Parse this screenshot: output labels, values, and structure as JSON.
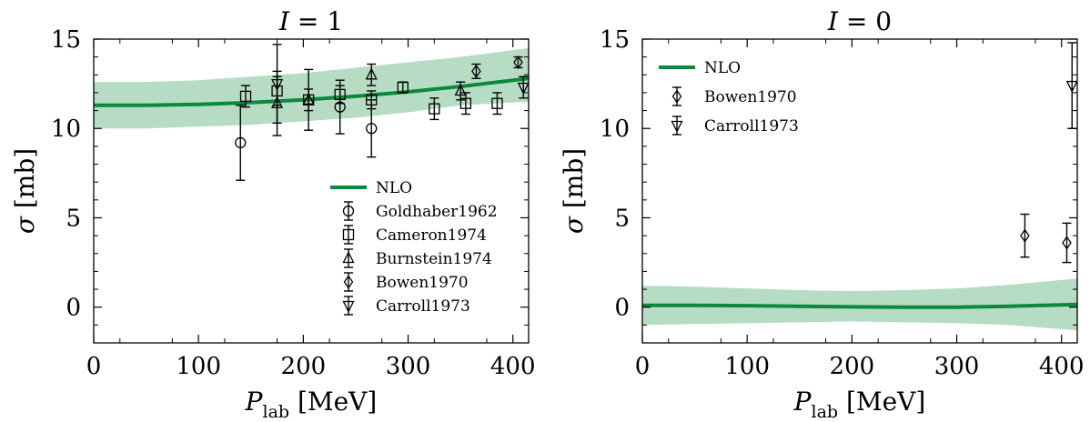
{
  "chart_data": [
    {
      "type": "line",
      "title": "I = 1",
      "xlabel": "P_lab [MeV]",
      "ylabel": "σ [mb]",
      "xlim": [
        0,
        415
      ],
      "ylim": [
        -2,
        15
      ],
      "xticks": [
        0,
        100,
        200,
        300,
        400
      ],
      "yticks": [
        0,
        5,
        10,
        15
      ],
      "legend_position": "bottom-right",
      "band": {
        "name": "NLO",
        "color": "#b6ddc3",
        "x": [
          0,
          50,
          100,
          150,
          200,
          250,
          300,
          350,
          415
        ],
        "lower": [
          10.0,
          10.0,
          10.1,
          10.2,
          10.4,
          10.6,
          10.9,
          11.3,
          11.5
        ],
        "upper": [
          12.6,
          12.6,
          12.7,
          12.9,
          13.1,
          13.4,
          13.7,
          14.0,
          14.5
        ]
      },
      "series": [
        {
          "name": "NLO",
          "kind": "line",
          "color": "#0a8a3a",
          "x": [
            0,
            50,
            100,
            150,
            200,
            250,
            300,
            350,
            415
          ],
          "y": [
            11.3,
            11.3,
            11.35,
            11.45,
            11.6,
            11.8,
            12.05,
            12.35,
            12.8
          ]
        },
        {
          "name": "Goldhaber1962",
          "kind": "errorbar",
          "marker": "circle",
          "points": [
            {
              "x": 140,
              "y": 9.2,
              "err": 2.1
            },
            {
              "x": 235,
              "y": 11.2,
              "err": 1.5
            },
            {
              "x": 265,
              "y": 10.0,
              "err": 1.6
            }
          ]
        },
        {
          "name": "Cameron1974",
          "kind": "errorbar",
          "marker": "square",
          "points": [
            {
              "x": 145,
              "y": 11.8,
              "err": 0.6
            },
            {
              "x": 175,
              "y": 12.1,
              "err": 0.8
            },
            {
              "x": 205,
              "y": 11.6,
              "err": 0.6
            },
            {
              "x": 235,
              "y": 11.9,
              "err": 0.5
            },
            {
              "x": 265,
              "y": 11.6,
              "err": 0.5
            },
            {
              "x": 295,
              "y": 12.3,
              "err": 0.3
            },
            {
              "x": 325,
              "y": 11.1,
              "err": 0.6
            },
            {
              "x": 355,
              "y": 11.4,
              "err": 0.6
            },
            {
              "x": 385,
              "y": 11.4,
              "err": 0.6
            }
          ]
        },
        {
          "name": "Burnstein1974",
          "kind": "errorbar",
          "marker": "triangle-up",
          "points": [
            {
              "x": 175,
              "y": 11.4,
              "err": 1.8
            },
            {
              "x": 205,
              "y": 11.6,
              "err": 1.7
            },
            {
              "x": 265,
              "y": 13.0,
              "err": 0.6
            },
            {
              "x": 350,
              "y": 12.1,
              "err": 0.5
            }
          ]
        },
        {
          "name": "Bowen1970",
          "kind": "errorbar",
          "marker": "diamond",
          "points": [
            {
              "x": 365,
              "y": 13.2,
              "err": 0.4
            },
            {
              "x": 405,
              "y": 13.7,
              "err": 0.3
            }
          ]
        },
        {
          "name": "Carroll1973",
          "kind": "errorbar",
          "marker": "triangle-down",
          "points": [
            {
              "x": 175,
              "y": 12.5,
              "err": 2.2
            },
            {
              "x": 410,
              "y": 12.3,
              "err": 0.6
            }
          ]
        }
      ]
    },
    {
      "type": "line",
      "title": "I = 0",
      "xlabel": "P_lab [MeV]",
      "ylabel": "σ [mb]",
      "xlim": [
        0,
        415
      ],
      "ylim": [
        -2,
        15
      ],
      "xticks": [
        0,
        100,
        200,
        300,
        400
      ],
      "yticks": [
        0,
        5,
        10,
        15
      ],
      "legend_position": "top-left",
      "band": {
        "name": "NLO",
        "color": "#b6ddc3",
        "x": [
          0,
          50,
          100,
          150,
          200,
          250,
          300,
          350,
          415
        ],
        "lower": [
          -1.0,
          -0.95,
          -0.9,
          -0.85,
          -0.8,
          -0.85,
          -0.9,
          -1.0,
          -1.3
        ],
        "upper": [
          1.2,
          1.15,
          1.05,
          0.95,
          0.9,
          0.95,
          1.05,
          1.25,
          1.6
        ]
      },
      "series": [
        {
          "name": "NLO",
          "kind": "line",
          "color": "#0a8a3a",
          "x": [
            0,
            50,
            100,
            150,
            200,
            250,
            300,
            350,
            415
          ],
          "y": [
            0.1,
            0.1,
            0.08,
            0.05,
            0.02,
            0.0,
            0.0,
            0.05,
            0.15
          ]
        },
        {
          "name": "Bowen1970",
          "kind": "errorbar",
          "marker": "diamond",
          "points": [
            {
              "x": 365,
              "y": 4.0,
              "err": 1.2
            },
            {
              "x": 405,
              "y": 3.6,
              "err": 1.1
            }
          ]
        },
        {
          "name": "Carroll1973",
          "kind": "errorbar",
          "marker": "triangle-down",
          "points": [
            {
              "x": 410,
              "y": 12.4,
              "err": 2.4
            }
          ]
        }
      ]
    }
  ]
}
